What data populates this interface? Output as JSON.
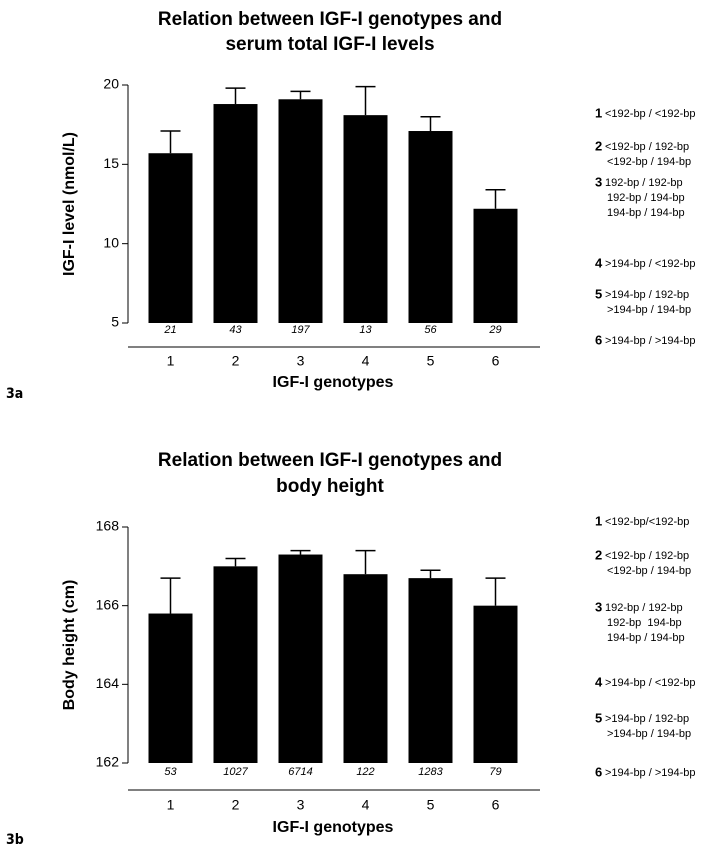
{
  "chart_data": [
    {
      "type": "bar",
      "panel": "3a",
      "title": [
        "Relation between IGF-I genotypes and",
        "serum total IGF-I levels"
      ],
      "ylabel": "IGF-I level (nmol/L)",
      "xlabel": "IGF-I genotypes",
      "categories": [
        "1",
        "2",
        "3",
        "4",
        "5",
        "6"
      ],
      "values": [
        15.7,
        18.8,
        19.1,
        18.1,
        17.1,
        12.2
      ],
      "errors": [
        1.4,
        1.0,
        0.5,
        1.8,
        0.9,
        1.2
      ],
      "n": [
        21,
        43,
        197,
        13,
        56,
        29
      ],
      "color": "#000000",
      "ylim": [
        5,
        20
      ],
      "yticks": [
        5,
        10,
        15,
        20
      ],
      "legend": [
        {
          "label": "1",
          "lines": [
            "<192-bp / <192-bp"
          ]
        },
        {
          "label": "2",
          "lines": [
            "<192-bp / 192-bp",
            "<192-bp / 194-bp"
          ]
        },
        {
          "label": "3",
          "lines": [
            "192-bp / 192-bp",
            "192-bp / 194-bp",
            "194-bp / 194-bp"
          ]
        },
        {
          "label": "4",
          "lines": [
            ">194-bp / <192-bp"
          ]
        },
        {
          "label": "5",
          "lines": [
            ">194-bp / 192-bp",
            ">194-bp / 194-bp"
          ]
        },
        {
          "label": "6",
          "lines": [
            ">194-bp / >194-bp"
          ]
        }
      ]
    },
    {
      "type": "bar",
      "panel": "3b",
      "title": [
        "Relation between IGF-I genotypes and",
        "body height"
      ],
      "ylabel": "Body height (cm)",
      "xlabel": "IGF-I genotypes",
      "categories": [
        "1",
        "2",
        "3",
        "4",
        "5",
        "6"
      ],
      "values": [
        165.8,
        167.0,
        167.3,
        166.8,
        166.7,
        166.0
      ],
      "errors": [
        0.9,
        0.2,
        0.1,
        0.6,
        0.2,
        0.7
      ],
      "n": [
        53,
        1027,
        6714,
        122,
        1283,
        79
      ],
      "color": "#000000",
      "ylim": [
        162,
        168
      ],
      "yticks": [
        162,
        164,
        166,
        168
      ],
      "legend": [
        {
          "label": "1",
          "lines": [
            "<192-bp/<192-bp"
          ]
        },
        {
          "label": "2",
          "lines": [
            "<192-bp / 192-bp",
            "<192-bp / 194-bp"
          ]
        },
        {
          "label": "3",
          "lines": [
            "192-bp / 192-bp",
            "192-bp  194-bp",
            "194-bp / 194-bp"
          ]
        },
        {
          "label": "4",
          "lines": [
            ">194-bp / <192-bp"
          ]
        },
        {
          "label": "5",
          "lines": [
            ">194-bp / 192-bp",
            ">194-bp / 194-bp"
          ]
        },
        {
          "label": "6",
          "lines": [
            ">194-bp / >194-bp"
          ]
        }
      ]
    }
  ]
}
